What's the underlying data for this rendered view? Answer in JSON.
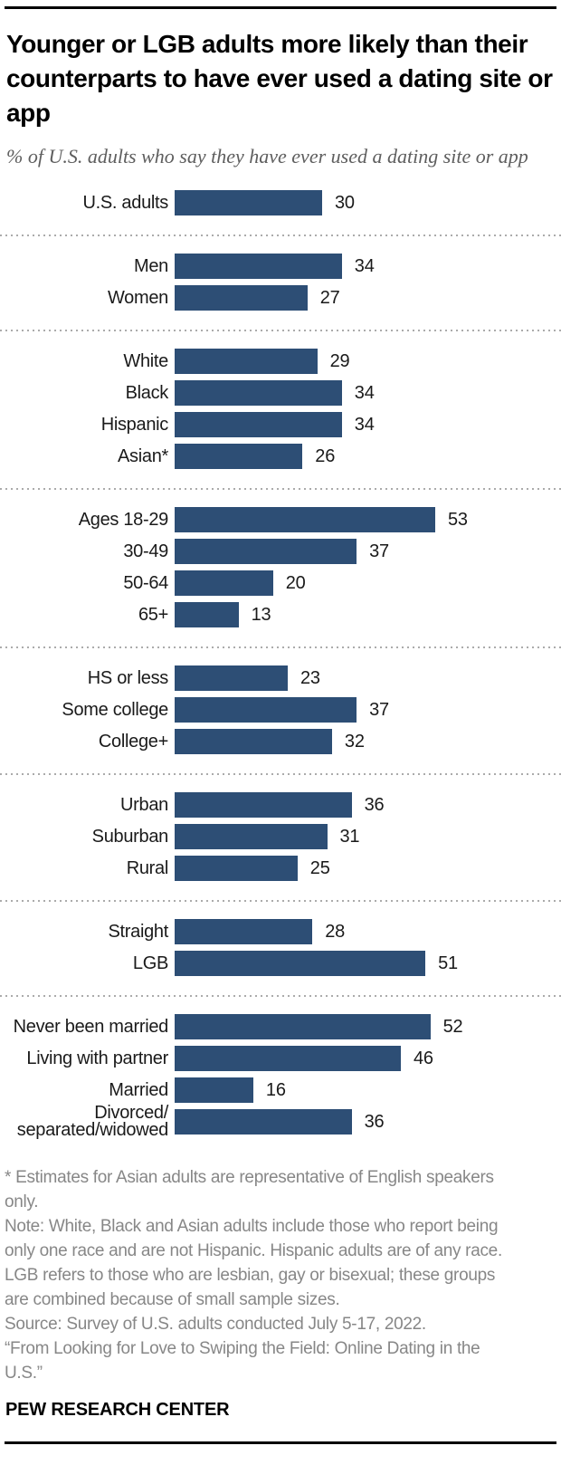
{
  "title": "Younger or LGB adults more likely than their counterparts to have ever used a dating site or app",
  "subtitle": "% of U.S. adults who say they have ever used a dating site or app",
  "chart_data": {
    "type": "bar",
    "orientation": "horizontal",
    "unit": "%",
    "bar_color": "#2d4e75",
    "value_axis_hidden": true,
    "xlim": [
      0,
      55
    ],
    "groups": [
      {
        "name": "overall",
        "rows": [
          {
            "label": "U.S. adults",
            "value": 30
          }
        ]
      },
      {
        "name": "gender",
        "rows": [
          {
            "label": "Men",
            "value": 34
          },
          {
            "label": "Women",
            "value": 27
          }
        ]
      },
      {
        "name": "race-ethnicity",
        "rows": [
          {
            "label": "White",
            "value": 29
          },
          {
            "label": "Black",
            "value": 34
          },
          {
            "label": "Hispanic",
            "value": 34
          },
          {
            "label": "Asian*",
            "value": 26
          }
        ]
      },
      {
        "name": "age",
        "rows": [
          {
            "label": "Ages 18-29",
            "value": 53
          },
          {
            "label": "30-49",
            "value": 37
          },
          {
            "label": "50-64",
            "value": 20
          },
          {
            "label": "65+",
            "value": 13
          }
        ]
      },
      {
        "name": "education",
        "rows": [
          {
            "label": "HS or less",
            "value": 23
          },
          {
            "label": "Some college",
            "value": 37
          },
          {
            "label": "College+",
            "value": 32
          }
        ]
      },
      {
        "name": "community-type",
        "rows": [
          {
            "label": "Urban",
            "value": 36
          },
          {
            "label": "Suburban",
            "value": 31
          },
          {
            "label": "Rural",
            "value": 25
          }
        ]
      },
      {
        "name": "sexual-orientation",
        "rows": [
          {
            "label": "Straight",
            "value": 28
          },
          {
            "label": "LGB",
            "value": 51
          }
        ]
      },
      {
        "name": "marital-status",
        "rows": [
          {
            "label": "Never been married",
            "value": 52
          },
          {
            "label": "Living with partner",
            "value": 46
          },
          {
            "label": "Married",
            "value": 16
          },
          {
            "label": "Divorced/\nseparated/widowed",
            "value": 36
          }
        ]
      }
    ]
  },
  "footnotes": {
    "lines": [
      "* Estimates for Asian adults are representative of English speakers",
      "only.",
      "Note: White, Black and Asian adults include those who report being",
      "only one race and are not Hispanic. Hispanic adults are of any race.",
      "LGB refers to those who are lesbian, gay or bisexual; these groups",
      "are combined because of small sample sizes.",
      "Source: Survey of U.S. adults conducted July 5-17, 2022.",
      "“From Looking for Love to Swiping the Field: Online Dating in the",
      "U.S.”"
    ]
  },
  "branding": "PEW RESEARCH CENTER"
}
